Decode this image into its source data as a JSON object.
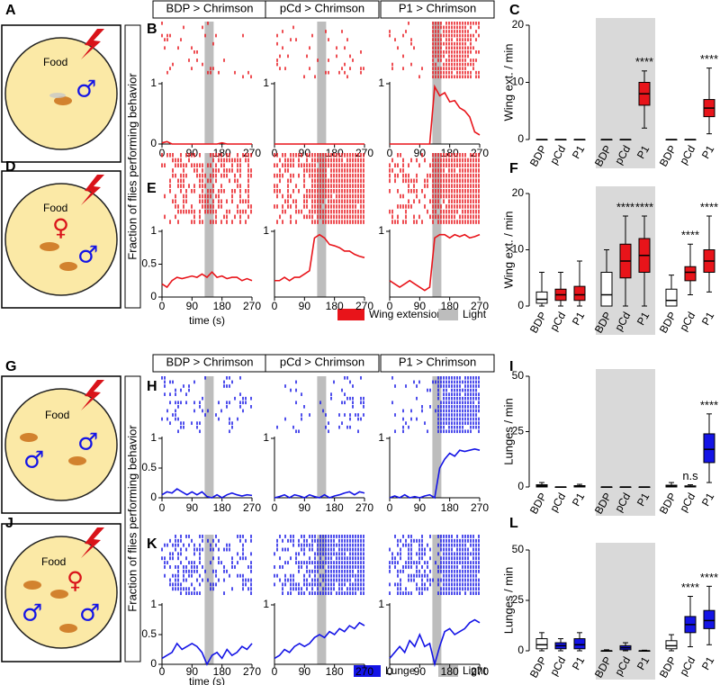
{
  "panel_labels": [
    "A",
    "B",
    "C",
    "D",
    "E",
    "F",
    "G",
    "H",
    "I",
    "J",
    "K",
    "L"
  ],
  "y_axis_title": "Fraction of flies performing behavior",
  "arena_text": "Food",
  "male_symbol": "♂",
  "female_symbol": "♀",
  "legends": [
    [
      {
        "name": "Wing extension",
        "color": "#e8141a"
      },
      {
        "name": "Light",
        "color": "#bdbdbd"
      }
    ],
    [
      {
        "name": "Lunge",
        "color": "#1414e6"
      },
      {
        "name": "Light",
        "color": "#bdbdbd"
      }
    ]
  ],
  "chart_data": [
    {
      "type": "line",
      "title": "BDP > Chrimson",
      "color": "#e8141a",
      "x": [
        0,
        15,
        30,
        45,
        60,
        75,
        90,
        105,
        120,
        135,
        150,
        165,
        180,
        195,
        210,
        225,
        240,
        255,
        270
      ],
      "values": [
        0.02,
        0.04,
        0,
        0,
        0,
        0,
        0,
        0,
        0,
        0,
        0,
        0,
        0.02,
        0,
        0,
        0,
        0,
        0,
        0
      ],
      "xlim": [
        0,
        270
      ],
      "xticks": [
        0,
        90,
        180,
        270
      ],
      "ylim": [
        0,
        1
      ],
      "yticks": [
        0,
        1
      ],
      "light": [
        128,
        155
      ]
    },
    {
      "type": "line",
      "title": "pCd > Chrimson",
      "color": "#e8141a",
      "x": [
        0,
        15,
        30,
        45,
        60,
        75,
        90,
        105,
        120,
        135,
        150,
        165,
        180,
        195,
        210,
        225,
        240,
        255,
        270
      ],
      "values": [
        0,
        0,
        0,
        0,
        0,
        0,
        0,
        0,
        0,
        0,
        0,
        0,
        0,
        0,
        0,
        0,
        0,
        0,
        0
      ],
      "xlim": [
        0,
        270
      ],
      "xticks": [
        0,
        90,
        180,
        270
      ],
      "ylim": [
        0,
        1
      ],
      "yticks": [
        1
      ],
      "light": [
        128,
        155
      ]
    },
    {
      "type": "line",
      "title": "P1 > Chrimson",
      "color": "#e8141a",
      "x": [
        0,
        15,
        30,
        45,
        60,
        75,
        90,
        105,
        120,
        135,
        150,
        165,
        180,
        195,
        210,
        225,
        240,
        255,
        270
      ],
      "values": [
        0,
        0,
        0,
        0,
        0,
        0,
        0,
        0,
        0,
        0.95,
        0.8,
        0.85,
        0.7,
        0.72,
        0.6,
        0.55,
        0.45,
        0.2,
        0.15
      ],
      "xlim": [
        0,
        270
      ],
      "xticks": [
        0,
        90,
        180,
        270
      ],
      "ylim": [
        0,
        1
      ],
      "yticks": [
        1
      ],
      "light": [
        128,
        155
      ]
    },
    {
      "type": "line",
      "color": "#e8141a",
      "x": [
        0,
        15,
        30,
        45,
        60,
        75,
        90,
        105,
        120,
        135,
        150,
        165,
        180,
        195,
        210,
        225,
        240,
        255,
        270
      ],
      "values": [
        0.2,
        0.15,
        0.25,
        0.3,
        0.28,
        0.3,
        0.32,
        0.3,
        0.35,
        0.3,
        0.38,
        0.3,
        0.32,
        0.28,
        0.3,
        0.3,
        0.25,
        0.28,
        0.25
      ],
      "xlim": [
        0,
        270
      ],
      "xticks": [
        0,
        90,
        180,
        270
      ],
      "ylim": [
        0,
        1
      ],
      "yticks": [
        0,
        0.5,
        1
      ],
      "light": [
        128,
        155
      ],
      "xlabel": "time (s)"
    },
    {
      "type": "line",
      "color": "#e8141a",
      "x": [
        0,
        15,
        30,
        45,
        60,
        75,
        90,
        105,
        120,
        135,
        150,
        165,
        180,
        195,
        210,
        225,
        240,
        255,
        270
      ],
      "values": [
        0.25,
        0.25,
        0.3,
        0.25,
        0.3,
        0.3,
        0.35,
        0.4,
        0.9,
        0.95,
        0.9,
        0.8,
        0.78,
        0.75,
        0.7,
        0.7,
        0.65,
        0.62,
        0.6
      ],
      "xlim": [
        0,
        270
      ],
      "xticks": [
        0,
        90,
        180,
        270
      ],
      "ylim": [
        0,
        1
      ],
      "yticks": [
        1
      ],
      "light": [
        128,
        155
      ]
    },
    {
      "type": "line",
      "color": "#e8141a",
      "x": [
        0,
        15,
        30,
        45,
        60,
        75,
        90,
        105,
        120,
        135,
        150,
        165,
        180,
        195,
        210,
        225,
        240,
        255,
        270
      ],
      "values": [
        0.25,
        0.2,
        0.15,
        0.2,
        0.25,
        0.2,
        0.15,
        0.1,
        0.15,
        0.9,
        0.95,
        0.95,
        0.9,
        0.95,
        0.92,
        0.95,
        0.9,
        0.92,
        0.95
      ],
      "xlim": [
        0,
        270
      ],
      "xticks": [
        0,
        90,
        180,
        270
      ],
      "ylim": [
        0,
        1
      ],
      "yticks": [
        1
      ],
      "light": [
        128,
        155
      ]
    },
    {
      "type": "line",
      "title": "BDP > Chrimson",
      "color": "#1414e6",
      "x": [
        0,
        15,
        30,
        45,
        60,
        75,
        90,
        105,
        120,
        135,
        150,
        165,
        180,
        195,
        210,
        225,
        240,
        255,
        270
      ],
      "values": [
        0.05,
        0.1,
        0.08,
        0.15,
        0.1,
        0.05,
        0.1,
        0.05,
        0.1,
        0.02,
        0,
        0.05,
        0,
        0.05,
        0.08,
        0.05,
        0.03,
        0.05,
        0.04
      ],
      "xlim": [
        0,
        270
      ],
      "xticks": [
        0,
        90,
        180,
        270
      ],
      "ylim": [
        0,
        1
      ],
      "yticks": [
        0,
        0.5,
        1
      ],
      "light": [
        128,
        155
      ]
    },
    {
      "type": "line",
      "title": "pCd > Chrimson",
      "color": "#1414e6",
      "x": [
        0,
        15,
        30,
        45,
        60,
        75,
        90,
        105,
        120,
        135,
        150,
        165,
        180,
        195,
        210,
        225,
        240,
        255,
        270
      ],
      "values": [
        0,
        0.02,
        0.05,
        0,
        0.05,
        0.03,
        0,
        0.05,
        0.02,
        0,
        0.05,
        0,
        0.03,
        0.05,
        0.08,
        0.1,
        0.05,
        0.1,
        0.08
      ],
      "xlim": [
        0,
        270
      ],
      "xticks": [
        0,
        90,
        180,
        270
      ],
      "ylim": [
        0,
        1
      ],
      "yticks": [
        1
      ],
      "light": [
        128,
        155
      ]
    },
    {
      "type": "line",
      "title": "P1 > Chrimson",
      "color": "#1414e6",
      "x": [
        0,
        15,
        30,
        45,
        60,
        75,
        90,
        105,
        120,
        135,
        150,
        165,
        180,
        195,
        210,
        225,
        240,
        255,
        270
      ],
      "values": [
        0,
        0.03,
        0,
        0.05,
        0,
        0.02,
        0,
        0.03,
        0.05,
        0,
        0.5,
        0.65,
        0.75,
        0.7,
        0.8,
        0.78,
        0.8,
        0.82,
        0.8
      ],
      "xlim": [
        0,
        270
      ],
      "xticks": [
        0,
        90,
        180,
        270
      ],
      "ylim": [
        0,
        1
      ],
      "yticks": [
        1
      ],
      "light": [
        128,
        155
      ]
    },
    {
      "type": "line",
      "color": "#1414e6",
      "x": [
        0,
        15,
        30,
        45,
        60,
        75,
        90,
        105,
        120,
        135,
        150,
        165,
        180,
        195,
        210,
        225,
        240,
        255,
        270
      ],
      "values": [
        0.1,
        0.15,
        0.2,
        0.35,
        0.25,
        0.3,
        0.35,
        0.3,
        0.2,
        0,
        0.15,
        0.2,
        0.1,
        0.25,
        0.15,
        0.2,
        0.3,
        0.25,
        0.35
      ],
      "xlim": [
        0,
        270
      ],
      "xticks": [
        0,
        90,
        180,
        270
      ],
      "ylim": [
        0,
        1
      ],
      "yticks": [
        0,
        0.5,
        1
      ],
      "light": [
        128,
        155
      ],
      "xlabel": "time (s)"
    },
    {
      "type": "line",
      "color": "#1414e6",
      "x": [
        0,
        15,
        30,
        45,
        60,
        75,
        90,
        105,
        120,
        135,
        150,
        165,
        180,
        195,
        210,
        225,
        240,
        255,
        270
      ],
      "values": [
        0.1,
        0.15,
        0.25,
        0.2,
        0.3,
        0.35,
        0.3,
        0.35,
        0.45,
        0.5,
        0.45,
        0.55,
        0.5,
        0.6,
        0.55,
        0.65,
        0.6,
        0.7,
        0.65
      ],
      "xlim": [
        0,
        270
      ],
      "xticks": [
        0,
        90,
        180,
        270
      ],
      "ylim": [
        0,
        1
      ],
      "yticks": [
        1
      ],
      "light": [
        128,
        155
      ]
    },
    {
      "type": "line",
      "color": "#1414e6",
      "x": [
        0,
        15,
        30,
        45,
        60,
        75,
        90,
        105,
        120,
        135,
        150,
        165,
        180,
        195,
        210,
        225,
        240,
        255,
        270
      ],
      "values": [
        0.1,
        0.2,
        0.3,
        0.2,
        0.4,
        0.3,
        0.5,
        0.3,
        0.35,
        0,
        0.3,
        0.55,
        0.6,
        0.5,
        0.55,
        0.6,
        0.7,
        0.75,
        0.7
      ],
      "xlim": [
        0,
        270
      ],
      "xticks": [
        0,
        90,
        180,
        270
      ],
      "ylim": [
        0,
        1
      ],
      "yticks": [
        1
      ],
      "light": [
        128,
        155
      ]
    },
    {
      "type": "box",
      "ylabel": "Wing ext. / min",
      "categories": [
        "BDP",
        "pCd",
        "P1",
        "BDP",
        "pCd",
        "P1",
        "BDP",
        "pCd",
        "P1"
      ],
      "values": [
        [
          0,
          0,
          0,
          0,
          0
        ],
        [
          0,
          0,
          0,
          0,
          0
        ],
        [
          0,
          0,
          0,
          0,
          0
        ],
        [
          0,
          0,
          0,
          0,
          0
        ],
        [
          0,
          0,
          0,
          0,
          0
        ],
        [
          2,
          6,
          8,
          10,
          12
        ],
        [
          0,
          0,
          0,
          0,
          0
        ],
        [
          0,
          0,
          0,
          0,
          0
        ],
        [
          1,
          4,
          5.5,
          7,
          12.5
        ]
      ],
      "colors": [
        "#ffffff",
        "#e8141a",
        "#e8141a",
        "#ffffff",
        "#e8141a",
        "#e8141a",
        "#ffffff",
        "#e8141a",
        "#e8141a"
      ],
      "annotations": [
        null,
        null,
        null,
        null,
        null,
        "****",
        null,
        null,
        "****"
      ],
      "ylim": [
        0,
        20
      ],
      "yticks": [
        0,
        10,
        20
      ],
      "shaded": [
        3,
        5
      ]
    },
    {
      "type": "box",
      "ylabel": "Wing ext. / min",
      "categories": [
        "BDP",
        "pCd",
        "P1",
        "BDP",
        "pCd",
        "P1",
        "BDP",
        "pCd",
        "P1"
      ],
      "values": [
        [
          0,
          0.5,
          1.2,
          2.5,
          6
        ],
        [
          0,
          1,
          2,
          3,
          6
        ],
        [
          0,
          1,
          2,
          3.5,
          8
        ],
        [
          0,
          0,
          2,
          6,
          10
        ],
        [
          0,
          5,
          8,
          11,
          16
        ],
        [
          0,
          6,
          9,
          12,
          16
        ],
        [
          0,
          0,
          1,
          3,
          5.5
        ],
        [
          2,
          4.5,
          6,
          7,
          11
        ],
        [
          2.5,
          6,
          8,
          10,
          16
        ]
      ],
      "colors": [
        "#ffffff",
        "#e8141a",
        "#e8141a",
        "#ffffff",
        "#e8141a",
        "#e8141a",
        "#ffffff",
        "#e8141a",
        "#e8141a"
      ],
      "annotations": [
        null,
        null,
        null,
        null,
        "****",
        "****",
        null,
        "****",
        "****"
      ],
      "ylim": [
        0,
        20
      ],
      "yticks": [
        0,
        10,
        20
      ],
      "shaded": [
        3,
        5
      ]
    },
    {
      "type": "box",
      "ylabel": "Lunges / min",
      "categories": [
        "BDP",
        "pCd",
        "P1",
        "BDP",
        "pCd",
        "P1",
        "BDP",
        "pCd",
        "P1"
      ],
      "values": [
        [
          0,
          0,
          0.5,
          1,
          2
        ],
        [
          0,
          0,
          0,
          0,
          0
        ],
        [
          0,
          0,
          0.3,
          0.6,
          1.2
        ],
        [
          0,
          0,
          0,
          0,
          0
        ],
        [
          0,
          0,
          0,
          0,
          0
        ],
        [
          0,
          0,
          0,
          0,
          0
        ],
        [
          0,
          0,
          0.3,
          0.8,
          2
        ],
        [
          0,
          0,
          0.2,
          0.5,
          1
        ],
        [
          2,
          11,
          17,
          24,
          33
        ]
      ],
      "colors": [
        "#ffffff",
        "#1414e6",
        "#1414e6",
        "#ffffff",
        "#1414e6",
        "#1414e6",
        "#ffffff",
        "#1414e6",
        "#1414e6"
      ],
      "annotations": [
        null,
        null,
        null,
        null,
        null,
        null,
        null,
        "n.s",
        "****"
      ],
      "ylim": [
        0,
        50
      ],
      "yticks": [
        0,
        25,
        50
      ],
      "shaded": [
        3,
        5
      ]
    },
    {
      "type": "box",
      "ylabel": "Lunges / min",
      "categories": [
        "BDP",
        "pCd",
        "P1",
        "BDP",
        "pCd",
        "P1",
        "BDP",
        "pCd",
        "P1"
      ],
      "values": [
        [
          0,
          1,
          3,
          6,
          9
        ],
        [
          0,
          1,
          2.5,
          4,
          6
        ],
        [
          0,
          1,
          3,
          6,
          9
        ],
        [
          0,
          0,
          0,
          0,
          0.5
        ],
        [
          0,
          0.5,
          1.5,
          2.5,
          4
        ],
        [
          0,
          0,
          0,
          0,
          0.3
        ],
        [
          0,
          1,
          2.5,
          5,
          8
        ],
        [
          2,
          9,
          13,
          17,
          27
        ],
        [
          3,
          11,
          15,
          20,
          32
        ]
      ],
      "colors": [
        "#ffffff",
        "#1414e6",
        "#1414e6",
        "#ffffff",
        "#1414e6",
        "#1414e6",
        "#ffffff",
        "#1414e6",
        "#1414e6"
      ],
      "annotations": [
        null,
        null,
        null,
        null,
        null,
        null,
        null,
        "****",
        "****"
      ],
      "ylim": [
        0,
        50
      ],
      "yticks": [
        0,
        25,
        50
      ],
      "shaded": [
        3,
        5
      ]
    }
  ]
}
